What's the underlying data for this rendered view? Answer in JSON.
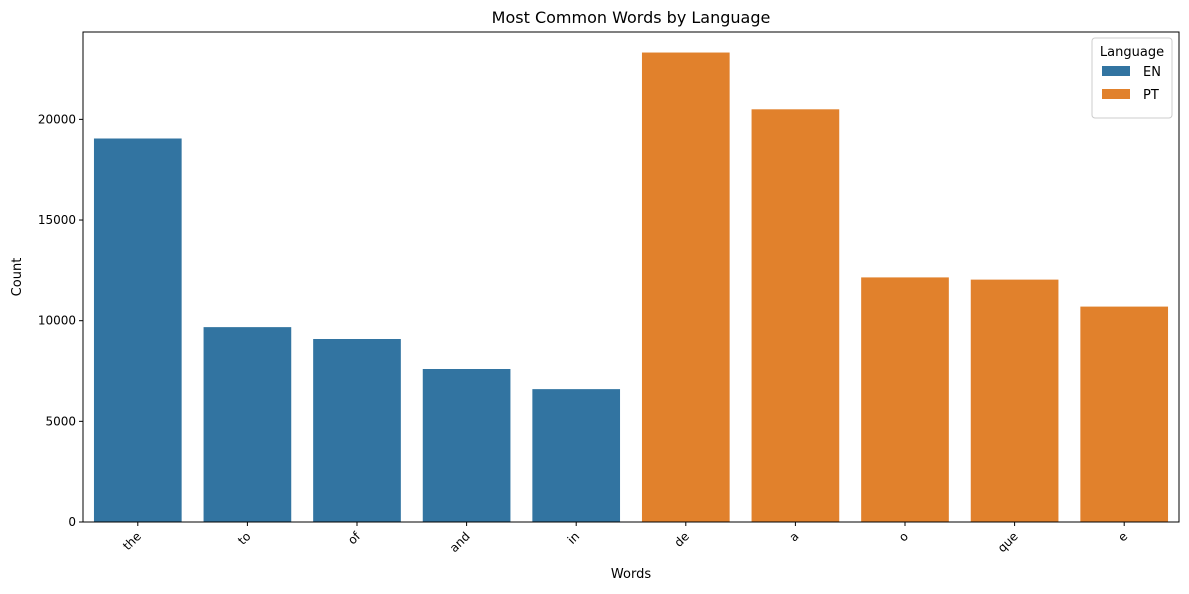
{
  "chart_data": {
    "type": "bar",
    "title": "Most Common Words by Language",
    "xlabel": "Words",
    "ylabel": "Count",
    "ylim": [
      0,
      24340
    ],
    "yticks": [
      0,
      5000,
      10000,
      15000,
      20000
    ],
    "categories": [
      "the",
      "to",
      "of",
      "and",
      "in",
      "de",
      "a",
      "o",
      "que",
      "e"
    ],
    "values": [
      19050,
      9680,
      9090,
      7600,
      6600,
      23320,
      20500,
      12150,
      12040,
      10700
    ],
    "groups": [
      "EN",
      "EN",
      "EN",
      "EN",
      "EN",
      "PT",
      "PT",
      "PT",
      "PT",
      "PT"
    ],
    "legend": {
      "title": "Language",
      "placement": "top-right",
      "entries": [
        {
          "name": "EN",
          "color": "#3274a1"
        },
        {
          "name": "PT",
          "color": "#e1812c"
        }
      ]
    },
    "grid": false
  }
}
